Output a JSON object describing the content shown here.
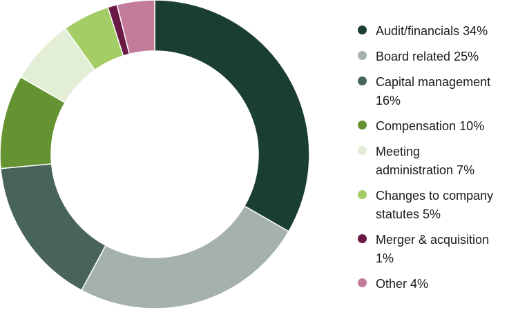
{
  "chart_data": {
    "type": "pie",
    "variant": "donut",
    "categories": [
      "Audit/financials",
      "Board related",
      "Capital management",
      "Compensation",
      "Meeting administration",
      "Changes to company statutes",
      "Merger & acquisition",
      "Other"
    ],
    "values": [
      34,
      25,
      16,
      10,
      7,
      5,
      1,
      4
    ],
    "legend_labels": [
      "Audit/financials  34%",
      "Board related 25%",
      "Capital management\n16%",
      "Compensation  10%",
      "Meeting\nadministration 7%",
      "Changes to company\nstatutes 5%",
      "Merger & acquisition\n1%",
      "Other 4%"
    ],
    "colors": [
      "#1b3e33",
      "#a5b2ac",
      "#48645a",
      "#659331",
      "#e2efd6",
      "#a4cd66",
      "#6a1a45",
      "#c47c9b"
    ],
    "start_angle_deg": 0,
    "direction": "clockwise",
    "legend_position": "right"
  }
}
